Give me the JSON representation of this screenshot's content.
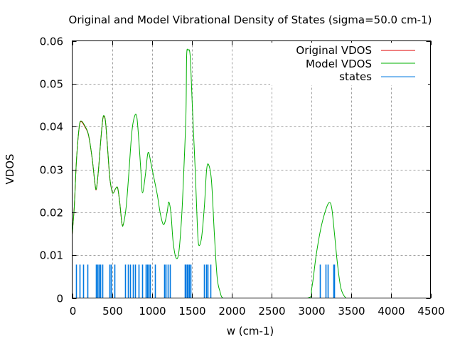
{
  "chart_data": {
    "type": "line",
    "title": "Original and Model Vibrational Density of States (sigma=50.0 cm-1)",
    "xlabel": "w (cm-1)",
    "ylabel": "VDOS",
    "xlim": [
      0,
      4500
    ],
    "ylim": [
      0,
      0.06
    ],
    "xticks": [
      "0",
      "500",
      "1000",
      "1500",
      "2000",
      "2500",
      "3000",
      "3500",
      "4000",
      "4500"
    ],
    "yticks": [
      "0",
      "0.01",
      "0.02",
      "0.03",
      "0.04",
      "0.05",
      "0.06"
    ],
    "grid": true,
    "legend_position": "top-right",
    "series": [
      {
        "name": "Original VDOS",
        "color": "#e00000",
        "x": [
          0,
          27,
          54,
          89,
          116,
          161,
          205,
          250,
          286,
          304,
          330,
          357,
          384,
          402,
          420,
          446,
          473,
          500,
          518,
          545,
          571,
          598,
          625,
          643
        ],
        "y": [
          0.0148,
          0.0214,
          0.0321,
          0.0399,
          0.0411,
          0.0399,
          0.038,
          0.0327,
          0.0267,
          0.0254,
          0.0298,
          0.0363,
          0.0416,
          0.0423,
          0.0409,
          0.0346,
          0.0279,
          0.025,
          0.0245,
          0.0255,
          0.0257,
          0.0222,
          0.0174,
          0.0172
        ]
      },
      {
        "name": "Model VDOS",
        "color": "#00b000",
        "x": [
          0,
          27,
          54,
          89,
          116,
          161,
          205,
          250,
          286,
          304,
          330,
          357,
          384,
          402,
          420,
          446,
          473,
          500,
          518,
          545,
          571,
          598,
          625,
          643,
          679,
          714,
          750,
          786,
          813,
          839,
          866,
          884,
          920,
          946,
          964,
          991,
          1036,
          1071,
          1107,
          1143,
          1170,
          1196,
          1214,
          1241,
          1268,
          1304,
          1339,
          1375,
          1402,
          1429,
          1438,
          1455,
          1482,
          1509,
          1545,
          1571,
          1589,
          1625,
          1661,
          1688,
          1714,
          1750,
          1786,
          1821,
          1857,
          1893,
          2000,
          2500,
          2955,
          3009,
          3063,
          3116,
          3170,
          3223,
          3259,
          3295,
          3330,
          3375,
          3437,
          3500,
          4500
        ],
        "y": [
          0.0148,
          0.0214,
          0.0321,
          0.04,
          0.0413,
          0.0401,
          0.0381,
          0.0328,
          0.0268,
          0.0255,
          0.0298,
          0.0363,
          0.0417,
          0.0425,
          0.041,
          0.0347,
          0.028,
          0.0249,
          0.0245,
          0.0255,
          0.0257,
          0.0222,
          0.0174,
          0.0172,
          0.0214,
          0.0297,
          0.0388,
          0.0425,
          0.0421,
          0.0363,
          0.0288,
          0.0245,
          0.0288,
          0.0333,
          0.0338,
          0.0313,
          0.0272,
          0.0239,
          0.0197,
          0.0172,
          0.018,
          0.0204,
          0.0224,
          0.0197,
          0.0131,
          0.0094,
          0.0106,
          0.0189,
          0.0296,
          0.0429,
          0.0565,
          0.0578,
          0.0565,
          0.0449,
          0.03,
          0.0174,
          0.0124,
          0.0141,
          0.0215,
          0.0298,
          0.0311,
          0.0273,
          0.0149,
          0.0048,
          0.0015,
          0.0,
          0.0,
          0.0,
          0.0,
          0.0023,
          0.0098,
          0.0156,
          0.0197,
          0.0222,
          0.0211,
          0.0149,
          0.0083,
          0.0023,
          0.0,
          0.0,
          0.0
        ]
      },
      {
        "name": "states",
        "color": "#0078e0",
        "type": "impulse",
        "height": 0.0078,
        "x": [
          45,
          98,
          134,
          188,
          295,
          321,
          339,
          357,
          375,
          473,
          491,
          527,
          661,
          705,
          732,
          759,
          786,
          839,
          875,
          920,
          946,
          964,
          982,
          1036,
          1152,
          1170,
          1197,
          1232,
          1411,
          1420,
          1438,
          1455,
          1473,
          1491,
          1652,
          1679,
          1705,
          1741,
          3116,
          3179,
          3214,
          3277,
          3286
        ]
      }
    ]
  }
}
